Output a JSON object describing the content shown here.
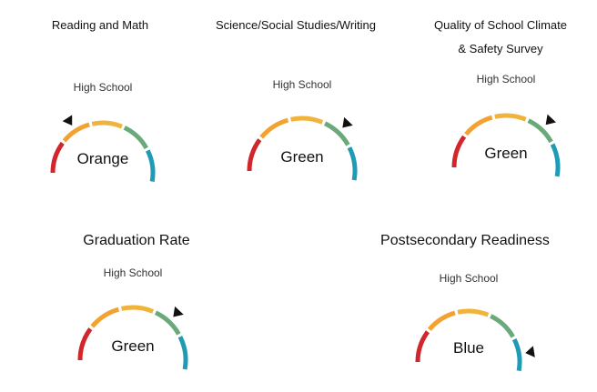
{
  "scale": {
    "segments": [
      {
        "name": "red",
        "color": "#d1262b"
      },
      {
        "name": "orange",
        "color": "#f2a230"
      },
      {
        "name": "yellow",
        "color": "#f0b33c"
      },
      {
        "name": "green",
        "color": "#6aaa7a"
      },
      {
        "name": "blue",
        "color": "#1f9bb5"
      }
    ]
  },
  "gauges": [
    {
      "title": "Reading and Math",
      "title_line2": "",
      "school_level": "High School",
      "rating": "Orange",
      "rating_index": 1
    },
    {
      "title": "Science/Social Studies/Writing",
      "title_line2": "",
      "school_level": "High School",
      "rating": "Green",
      "rating_index": 3
    },
    {
      "title": "Quality of School Climate",
      "title_line2": "& Safety Survey",
      "school_level": "High School",
      "rating": "Green",
      "rating_index": 3
    },
    {
      "title": "Graduation Rate",
      "title_line2": "",
      "school_level": "High School",
      "rating": "Green",
      "rating_index": 3
    },
    {
      "title": "Postsecondary Readiness",
      "title_line2": "",
      "school_level": "High School",
      "rating": "Blue",
      "rating_index": 4
    }
  ]
}
